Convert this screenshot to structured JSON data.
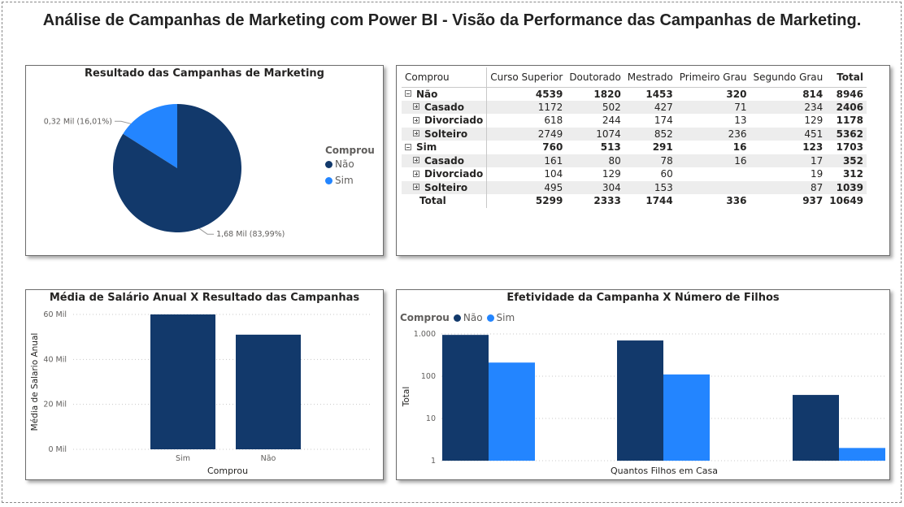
{
  "page": {
    "title": "Análise de Campanhas de Marketing com Power BI - Visão da Performance das Campanhas de Marketing."
  },
  "colors": {
    "nao": "#12396b",
    "sim": "#2385ff"
  },
  "chart_data": [
    {
      "type": "pie",
      "title": "Resultado das Campanhas de Marketing",
      "legend_title": "Comprou",
      "legend_position": "right",
      "slices": [
        {
          "name": "Não",
          "value": 1.68,
          "percent": 83.99,
          "label": "1,68 Mil (83,99%)",
          "color": "#12396b"
        },
        {
          "name": "Sim",
          "value": 0.32,
          "percent": 16.01,
          "label": "0,32 Mil (16,01%)",
          "color": "#2385ff"
        }
      ]
    },
    {
      "type": "table",
      "title": "",
      "columns": [
        "Comprou",
        "Curso Superior",
        "Doutorado",
        "Mestrado",
        "Primeiro Grau",
        "Segundo Grau",
        "Total"
      ],
      "rows": [
        {
          "label": "Não",
          "level": 0,
          "expander": "minus",
          "values": [
            "4539",
            "1820",
            "1453",
            "320",
            "814",
            "8946"
          ]
        },
        {
          "label": "Casado",
          "level": 1,
          "expander": "plus",
          "values": [
            "1172",
            "502",
            "427",
            "71",
            "234",
            "2406"
          ]
        },
        {
          "label": "Divorciado",
          "level": 1,
          "expander": "plus",
          "values": [
            "618",
            "244",
            "174",
            "13",
            "129",
            "1178"
          ]
        },
        {
          "label": "Solteiro",
          "level": 1,
          "expander": "plus",
          "values": [
            "2749",
            "1074",
            "852",
            "236",
            "451",
            "5362"
          ]
        },
        {
          "label": "Sim",
          "level": 0,
          "expander": "minus",
          "values": [
            "760",
            "513",
            "291",
            "16",
            "123",
            "1703"
          ]
        },
        {
          "label": "Casado",
          "level": 1,
          "expander": "plus",
          "values": [
            "161",
            "80",
            "78",
            "16",
            "17",
            "352"
          ]
        },
        {
          "label": "Divorciado",
          "level": 1,
          "expander": "plus",
          "values": [
            "104",
            "129",
            "60",
            "",
            "19",
            "312"
          ]
        },
        {
          "label": "Solteiro",
          "level": 1,
          "expander": "plus",
          "values": [
            "495",
            "304",
            "153",
            "",
            "87",
            "1039"
          ]
        },
        {
          "label": "Total",
          "level": -1,
          "expander": "none",
          "values": [
            "5299",
            "2333",
            "1744",
            "336",
            "937",
            "10649"
          ]
        }
      ]
    },
    {
      "type": "bar",
      "title": "Média de Salário Anual X Resultado das Campanhas",
      "xlabel": "Comprou",
      "ylabel": "Média de Salario Anual",
      "categories": [
        "Sim",
        "Não"
      ],
      "values": [
        60,
        51
      ],
      "ylim": [
        0,
        60
      ],
      "yticks": [
        {
          "value": 0,
          "label": "0 Mil"
        },
        {
          "value": 20,
          "label": "20 Mil"
        },
        {
          "value": 40,
          "label": "40 Mil"
        },
        {
          "value": 60,
          "label": "60 Mil"
        }
      ],
      "grid": true,
      "color": "#12396b"
    },
    {
      "type": "bar",
      "title": "Efetividade da Campanha X Número de Filhos",
      "xlabel": "Quantos Filhos em Casa",
      "ylabel": "Total",
      "y_scale": "log",
      "ylim": [
        1,
        1000
      ],
      "yticks": [
        {
          "value": 1,
          "label": "1"
        },
        {
          "value": 10,
          "label": "10"
        },
        {
          "value": 100,
          "label": "100"
        },
        {
          "value": 1000,
          "label": "1.000"
        }
      ],
      "grid": true,
      "legend_title": "Comprou",
      "legend_position": "top-left",
      "series": [
        {
          "name": "Não",
          "values": [
            950,
            700,
            36
          ],
          "color": "#12396b"
        },
        {
          "name": "Sim",
          "values": [
            210,
            110,
            2
          ],
          "color": "#2385ff"
        }
      ]
    }
  ]
}
